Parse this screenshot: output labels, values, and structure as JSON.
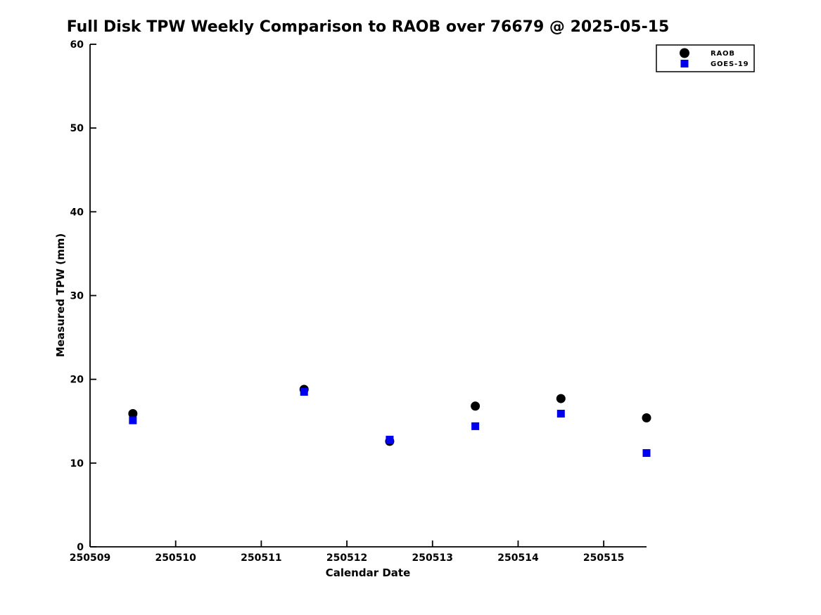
{
  "chart_data": {
    "type": "scatter",
    "title": "Full Disk TPW Weekly Comparison to RAOB over 76679 @ 2025-05-15",
    "xlabel": "Calendar Date",
    "ylabel": "Measured TPW (mm)",
    "xlim": [
      250509,
      250515.5
    ],
    "ylim": [
      0,
      60
    ],
    "xticks": [
      250509,
      250510,
      250511,
      250512,
      250513,
      250514,
      250515
    ],
    "yticks": [
      0,
      10,
      20,
      30,
      40,
      50,
      60
    ],
    "x": [
      250509.5,
      250511.5,
      250512.5,
      250513.5,
      250514.5,
      250515.5
    ],
    "series": [
      {
        "name": "RAOB",
        "marker": "circle",
        "color": "#000000",
        "values": [
          15.9,
          18.8,
          12.6,
          16.8,
          17.7,
          15.4
        ]
      },
      {
        "name": "GOES-19",
        "marker": "square",
        "color": "#0000ee",
        "values": [
          15.1,
          18.5,
          12.8,
          14.4,
          15.9,
          11.2
        ]
      }
    ],
    "legend": {
      "position": "top-right",
      "entries": [
        "RAOB",
        "GOES-19"
      ]
    },
    "grid": false,
    "background": "#ffffff"
  }
}
